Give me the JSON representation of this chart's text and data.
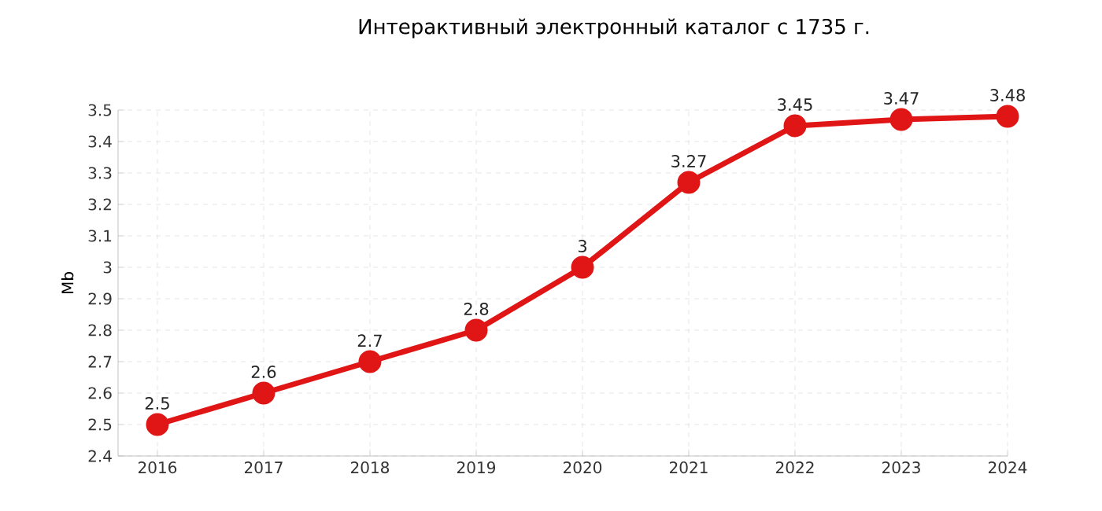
{
  "chart_data": {
    "type": "line",
    "title": "Интерактивный электронный каталог с 1735 г.",
    "ylabel": "Mb",
    "categories": [
      "2016",
      "2017",
      "2018",
      "2019",
      "2020",
      "2021",
      "2022",
      "2023",
      "2024"
    ],
    "values": [
      2.5,
      2.6,
      2.7,
      2.8,
      3,
      3.27,
      3.45,
      3.47,
      3.48
    ],
    "value_labels": [
      "2.5",
      "2.6",
      "2.7",
      "2.8",
      "3",
      "3.27",
      "3.45",
      "3.47",
      "3.48"
    ],
    "color": "#e01515",
    "marker": "circle",
    "line_style": "solid",
    "grid": true,
    "ylim": [
      2.4,
      3.5
    ],
    "yticks": [
      2.4,
      2.5,
      2.6,
      2.7,
      2.8,
      2.9,
      3,
      3.1,
      3.2,
      3.3,
      3.4,
      3.5
    ]
  }
}
